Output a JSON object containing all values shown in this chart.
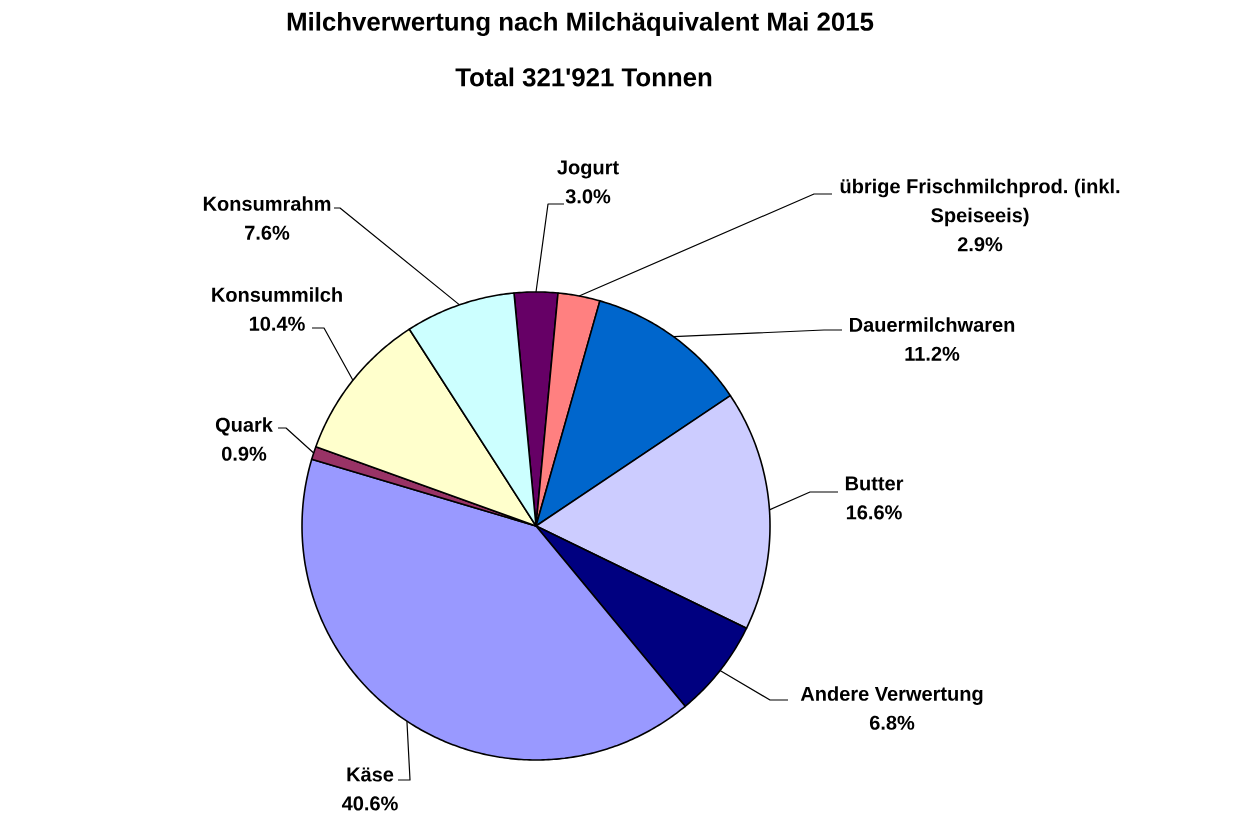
{
  "chart_data": {
    "type": "pie",
    "title": "Milchverwertung nach Milchäquivalent Mai 2015",
    "subtitle": "Total 321'921 Tonnen",
    "categories": [
      "Jogurt",
      "übrige Frischmilchprod. (inkl. Speiseeis)",
      "Dauermilchwaren",
      "Butter",
      "Andere Verwertung",
      "Käse",
      "Quark",
      "Konsummilch",
      "Konsumrahm"
    ],
    "values": [
      3.0,
      2.9,
      11.2,
      16.6,
      6.8,
      40.6,
      0.9,
      10.4,
      7.6
    ],
    "value_labels": [
      "3.0%",
      "2.9%",
      "11.2%",
      "16.6%",
      "6.8%",
      "40.6%",
      "0.9%",
      "10.4%",
      "7.6%"
    ],
    "colors": [
      "#660066",
      "#ff8080",
      "#0066cc",
      "#ccccff",
      "#000080",
      "#9999ff",
      "#993366",
      "#ffffcc",
      "#ccffff"
    ]
  }
}
